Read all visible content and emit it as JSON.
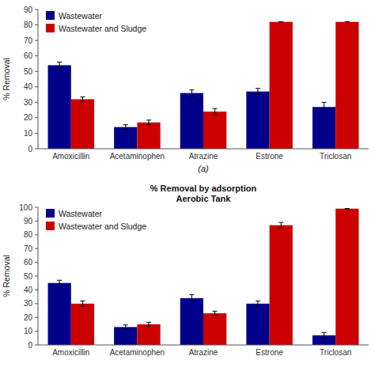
{
  "chart_data": [
    {
      "type": "bar",
      "categories": [
        "Amoxicillin",
        "Acetaminophen",
        "Atrazine",
        "Estrone",
        "Triclosan"
      ],
      "series": [
        {
          "name": "Wastewater",
          "color": "#00008B",
          "values": [
            54,
            14,
            36,
            37,
            27
          ],
          "errors": [
            2,
            1.5,
            2,
            2,
            3
          ]
        },
        {
          "name": "Wastewater and Sludge",
          "color": "#CC0000",
          "values": [
            32,
            17,
            24,
            82,
            82
          ],
          "errors": [
            1.5,
            1.5,
            2,
            0,
            0
          ]
        }
      ],
      "ylim": [
        0,
        90
      ],
      "yticks": [
        0,
        10,
        20,
        30,
        40,
        50,
        60,
        70,
        80,
        90
      ],
      "ylabel": "% Removal",
      "annotations": [
        "(a)"
      ],
      "legend": "upper left",
      "grid": false
    },
    {
      "type": "bar",
      "title": "% Removal by adsorption",
      "subtitle": "Aerobic Tank",
      "categories": [
        "Amoxicillin",
        "Acetaminophen",
        "Atrazine",
        "Estrone",
        "Triclosan"
      ],
      "series": [
        {
          "name": "Wastewater",
          "color": "#00008B",
          "values": [
            45,
            13,
            34,
            30,
            7
          ],
          "errors": [
            2,
            1.5,
            2.5,
            2,
            2
          ]
        },
        {
          "name": "Wastewater and Sludge",
          "color": "#CC0000",
          "values": [
            30,
            15,
            23,
            87,
            99
          ],
          "errors": [
            2,
            1.5,
            1.5,
            2,
            0
          ]
        }
      ],
      "ylim": [
        0,
        100
      ],
      "yticks": [
        0,
        10,
        20,
        30,
        40,
        50,
        60,
        70,
        80,
        90,
        100
      ],
      "ylabel": "% Removal",
      "legend": "upper left",
      "grid": false
    }
  ]
}
